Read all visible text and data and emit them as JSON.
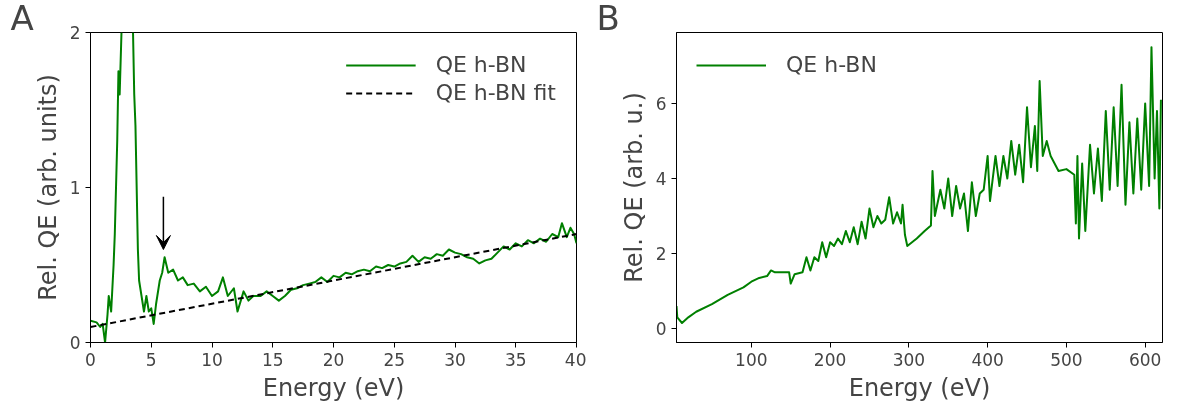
{
  "chart_data": [
    {
      "type": "line",
      "title": "A",
      "xlabel": "Energy (eV)",
      "ylabel": "Rel. QE (arb. units)",
      "xlim": [
        0,
        40
      ],
      "ylim": [
        0,
        2
      ],
      "xticks": [
        0,
        5,
        10,
        15,
        20,
        25,
        30,
        35,
        40
      ],
      "yticks": [
        0,
        1,
        2
      ],
      "legend": "top right",
      "grid": false,
      "series": [
        {
          "name": "QE h-BN",
          "color": "#008000",
          "line_style": "solid",
          "x": [
            0,
            0.5,
            0.8,
            1.0,
            1.2,
            1.4,
            1.5,
            1.7,
            1.9,
            2.0,
            2.2,
            2.3,
            2.4,
            2.55,
            3.0,
            3.5,
            3.6,
            3.7,
            3.9,
            4.0,
            4.2,
            4.4,
            4.6,
            4.8,
            5.0,
            5.2,
            5.4,
            5.7,
            5.9,
            6.1,
            6.4,
            6.8,
            7.2,
            7.6,
            8.0,
            8.5,
            9,
            9.5,
            10,
            10.5,
            10.9,
            11.3,
            11.8,
            12.1,
            12.6,
            13,
            13.4,
            14,
            14.5,
            15,
            15.5,
            16,
            16.5,
            17,
            17.5,
            18,
            18.5,
            19,
            19.5,
            20,
            20.5,
            21,
            21.5,
            22,
            22.5,
            23,
            23.5,
            24,
            24.5,
            25,
            25.5,
            26,
            26.5,
            27,
            27.5,
            28,
            28.5,
            29,
            29.5,
            30,
            30.5,
            31,
            31.5,
            32,
            32.5,
            33,
            33.5,
            34,
            34.5,
            35,
            35.5,
            36,
            36.5,
            37,
            37.5,
            38,
            38.5,
            38.8,
            39.2,
            39.5,
            39.8,
            40
          ],
          "values": [
            0.14,
            0.13,
            0.1,
            0.12,
            0.0,
            0.18,
            0.3,
            0.2,
            0.5,
            0.7,
            1.3,
            1.75,
            1.6,
            2.0,
            null,
            2.0,
            1.6,
            1.4,
            0.6,
            0.4,
            0.3,
            0.2,
            0.3,
            0.2,
            0.22,
            0.12,
            0.25,
            0.4,
            0.45,
            0.55,
            0.45,
            0.47,
            0.4,
            0.42,
            0.37,
            0.38,
            0.33,
            0.36,
            0.3,
            0.33,
            0.42,
            0.3,
            0.35,
            0.2,
            0.33,
            0.27,
            0.3,
            0.3,
            0.33,
            0.3,
            0.27,
            0.3,
            0.34,
            0.35,
            0.37,
            0.38,
            0.39,
            0.42,
            0.39,
            0.43,
            0.42,
            0.45,
            0.44,
            0.46,
            0.47,
            0.46,
            0.49,
            0.48,
            0.5,
            0.49,
            0.51,
            0.52,
            0.56,
            0.52,
            0.55,
            0.54,
            0.57,
            0.56,
            0.6,
            0.58,
            0.57,
            0.55,
            0.54,
            0.51,
            0.53,
            0.54,
            0.58,
            0.62,
            0.6,
            0.64,
            0.62,
            0.66,
            0.64,
            0.67,
            0.65,
            0.7,
            0.68,
            0.77,
            0.68,
            0.74,
            0.7,
            0.64
          ]
        },
        {
          "name": "QE h-BN fit",
          "color": "#000000",
          "line_style": "dashed",
          "x": [
            0,
            40
          ],
          "values": [
            0.1,
            0.7
          ]
        }
      ]
    },
    {
      "type": "line",
      "title": "B",
      "xlabel": "Energy (eV)",
      "ylabel": "Rel. QE (arb. u.)",
      "xlim": [
        5,
        622
      ],
      "ylim": [
        -0.37,
        7.89
      ],
      "xticks": [
        100,
        200,
        300,
        400,
        500,
        600
      ],
      "yticks": [
        0,
        2,
        4,
        6
      ],
      "legend": "top left",
      "grid": false,
      "series": [
        {
          "name": "QE h-BN",
          "color": "#008000",
          "line_style": "solid",
          "x": [
            5,
            6,
            12,
            20,
            30,
            50,
            70,
            90,
            100,
            110,
            120,
            125,
            130,
            148,
            150,
            155,
            165,
            170,
            175,
            180,
            185,
            190,
            195,
            200,
            205,
            210,
            215,
            220,
            225,
            230,
            235,
            240,
            245,
            250,
            255,
            260,
            265,
            270,
            275,
            280,
            285,
            290,
            292,
            295,
            298,
            310,
            320,
            328,
            330,
            333,
            340,
            345,
            350,
            355,
            360,
            365,
            370,
            375,
            380,
            385,
            390,
            395,
            400,
            403,
            410,
            415,
            420,
            425,
            430,
            435,
            440,
            445,
            450,
            455,
            460,
            463,
            466,
            470,
            475,
            480,
            490,
            500,
            510,
            512,
            514,
            516,
            520,
            524,
            530,
            535,
            540,
            545,
            550,
            555,
            560,
            565,
            570,
            575,
            580,
            585,
            590,
            595,
            600,
            605,
            608,
            612,
            615,
            618,
            620
          ],
          "values": [
            0.6,
            0.3,
            0.15,
            0.3,
            0.45,
            0.65,
            0.9,
            1.1,
            1.25,
            1.35,
            1.4,
            1.55,
            1.5,
            1.5,
            1.2,
            1.45,
            1.5,
            1.9,
            1.55,
            1.9,
            1.8,
            2.3,
            1.9,
            2.3,
            2.2,
            2.4,
            2.25,
            2.6,
            2.3,
            2.7,
            2.25,
            2.85,
            2.4,
            3.2,
            2.7,
            3.0,
            2.8,
            2.9,
            3.5,
            2.8,
            3.1,
            2.8,
            3.3,
            2.5,
            2.2,
            2.4,
            2.6,
            2.75,
            4.2,
            3.0,
            3.7,
            3.2,
            4.0,
            3.0,
            3.8,
            3.2,
            3.6,
            2.6,
            3.9,
            3.0,
            3.6,
            3.7,
            4.6,
            3.4,
            4.6,
            3.8,
            4.6,
            4.0,
            5.0,
            4.1,
            4.9,
            3.9,
            5.9,
            4.3,
            5.4,
            4.2,
            6.6,
            4.6,
            5.0,
            4.6,
            4.2,
            4.25,
            4.1,
            2.8,
            4.6,
            2.4,
            4.4,
            2.6,
            4.9,
            3.6,
            4.8,
            3.4,
            5.8,
            3.7,
            5.9,
            3.8,
            6.5,
            3.3,
            5.5,
            3.6,
            5.6,
            3.7,
            6.0,
            3.8,
            7.5,
            4.0,
            5.8,
            3.2,
            6.1
          ]
        }
      ]
    }
  ]
}
